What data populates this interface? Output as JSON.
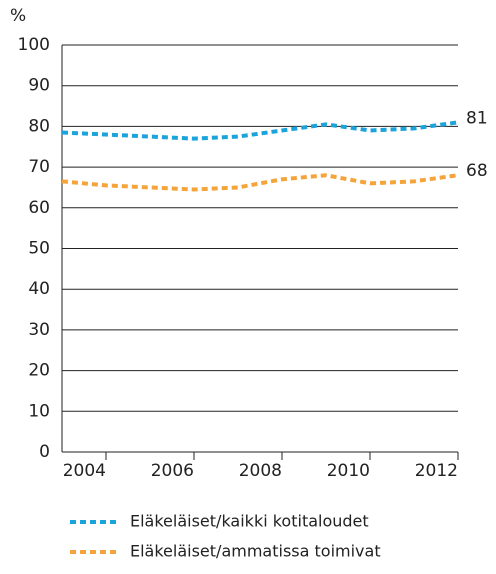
{
  "chart_data": {
    "type": "line",
    "y_label": "%",
    "x": [
      2003,
      2004,
      2005,
      2006,
      2007,
      2008,
      2009,
      2010,
      2011,
      2012
    ],
    "series": [
      {
        "name": "Eläkeläiset/kaikki kotitaloudet",
        "color": "#1ba3dc",
        "values": [
          78.5,
          78,
          77.5,
          77,
          77.5,
          79,
          80.5,
          79,
          79.5,
          81
        ]
      },
      {
        "name": "Eläkeläiset/ammatissa toimivat",
        "color": "#f4a43a",
        "values": [
          66.5,
          65.5,
          65,
          64.5,
          65,
          67,
          68,
          66,
          66.5,
          68
        ]
      }
    ],
    "xlim": [
      2003,
      2012
    ],
    "xticks": [
      2004,
      2006,
      2008,
      2010,
      2012
    ],
    "ylim": [
      0,
      100
    ],
    "yticks": [
      0,
      10,
      20,
      30,
      40,
      50,
      60,
      70,
      80,
      90,
      100
    ],
    "grid": true,
    "dashed": true,
    "end_labels": true
  }
}
